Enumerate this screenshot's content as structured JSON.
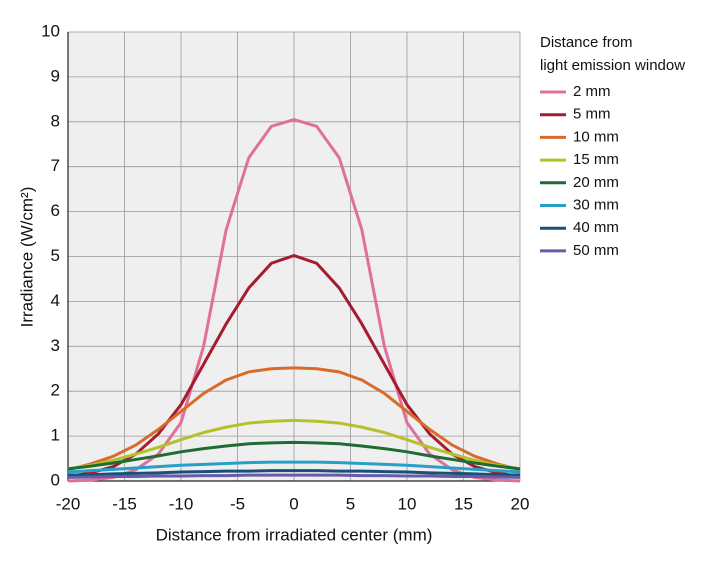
{
  "chart_data": {
    "type": "line",
    "xlabel": "Distance from irradiated center (mm)",
    "ylabel": "Irradiance (W/cm²)",
    "legend_title": [
      "Distance from",
      "light emission window"
    ],
    "legend_position": "right",
    "grid": true,
    "x": [
      -20,
      -18,
      -16,
      -14,
      -12,
      -10,
      -8,
      -6,
      -4,
      -2,
      0,
      2,
      4,
      6,
      8,
      10,
      12,
      14,
      16,
      18,
      20
    ],
    "xlim": [
      -20,
      20
    ],
    "xticks": [
      -20,
      -15,
      -10,
      -5,
      0,
      5,
      10,
      15,
      20
    ],
    "ylim": [
      0,
      10
    ],
    "yticks": [
      0,
      1,
      2,
      3,
      4,
      5,
      6,
      7,
      8,
      9,
      10
    ],
    "series": [
      {
        "name": "2 mm",
        "color": "#e0709a",
        "values": [
          0,
          0.02,
          0.08,
          0.25,
          0.6,
          1.3,
          3.0,
          5.6,
          7.2,
          7.9,
          8.05,
          7.9,
          7.2,
          5.6,
          3.0,
          1.3,
          0.6,
          0.25,
          0.08,
          0.02,
          0
        ]
      },
      {
        "name": "5 mm",
        "color": "#a51c30",
        "values": [
          0.1,
          0.18,
          0.32,
          0.6,
          1.05,
          1.7,
          2.6,
          3.5,
          4.3,
          4.85,
          5.02,
          4.85,
          4.3,
          3.5,
          2.6,
          1.7,
          1.05,
          0.6,
          0.32,
          0.18,
          0.1
        ]
      },
      {
        "name": "10 mm",
        "color": "#d86b2a",
        "values": [
          0.25,
          0.38,
          0.55,
          0.8,
          1.15,
          1.55,
          1.95,
          2.25,
          2.43,
          2.5,
          2.52,
          2.5,
          2.43,
          2.25,
          1.95,
          1.55,
          1.15,
          0.8,
          0.55,
          0.38,
          0.25
        ]
      },
      {
        "name": "15 mm",
        "color": "#b5c12a",
        "values": [
          0.27,
          0.35,
          0.46,
          0.6,
          0.75,
          0.92,
          1.08,
          1.2,
          1.29,
          1.33,
          1.35,
          1.33,
          1.29,
          1.2,
          1.08,
          0.92,
          0.75,
          0.6,
          0.46,
          0.35,
          0.27
        ]
      },
      {
        "name": "20 mm",
        "color": "#1e6b34",
        "values": [
          0.27,
          0.33,
          0.4,
          0.48,
          0.56,
          0.65,
          0.72,
          0.78,
          0.83,
          0.85,
          0.86,
          0.85,
          0.83,
          0.78,
          0.72,
          0.65,
          0.56,
          0.48,
          0.4,
          0.33,
          0.27
        ]
      },
      {
        "name": "30 mm",
        "color": "#26a0c8",
        "values": [
          0.2,
          0.23,
          0.26,
          0.29,
          0.32,
          0.35,
          0.37,
          0.39,
          0.41,
          0.42,
          0.42,
          0.42,
          0.41,
          0.39,
          0.37,
          0.35,
          0.32,
          0.29,
          0.26,
          0.23,
          0.2
        ]
      },
      {
        "name": "40 mm",
        "color": "#1a4f7a",
        "values": [
          0.13,
          0.14,
          0.16,
          0.17,
          0.18,
          0.2,
          0.21,
          0.22,
          0.22,
          0.23,
          0.23,
          0.23,
          0.22,
          0.22,
          0.21,
          0.2,
          0.18,
          0.17,
          0.16,
          0.14,
          0.13
        ]
      },
      {
        "name": "50 mm",
        "color": "#6a5aa8",
        "values": [
          0.08,
          0.09,
          0.1,
          0.1,
          0.11,
          0.11,
          0.12,
          0.12,
          0.13,
          0.13,
          0.13,
          0.13,
          0.13,
          0.12,
          0.12,
          0.11,
          0.11,
          0.1,
          0.1,
          0.09,
          0.08
        ]
      }
    ]
  }
}
